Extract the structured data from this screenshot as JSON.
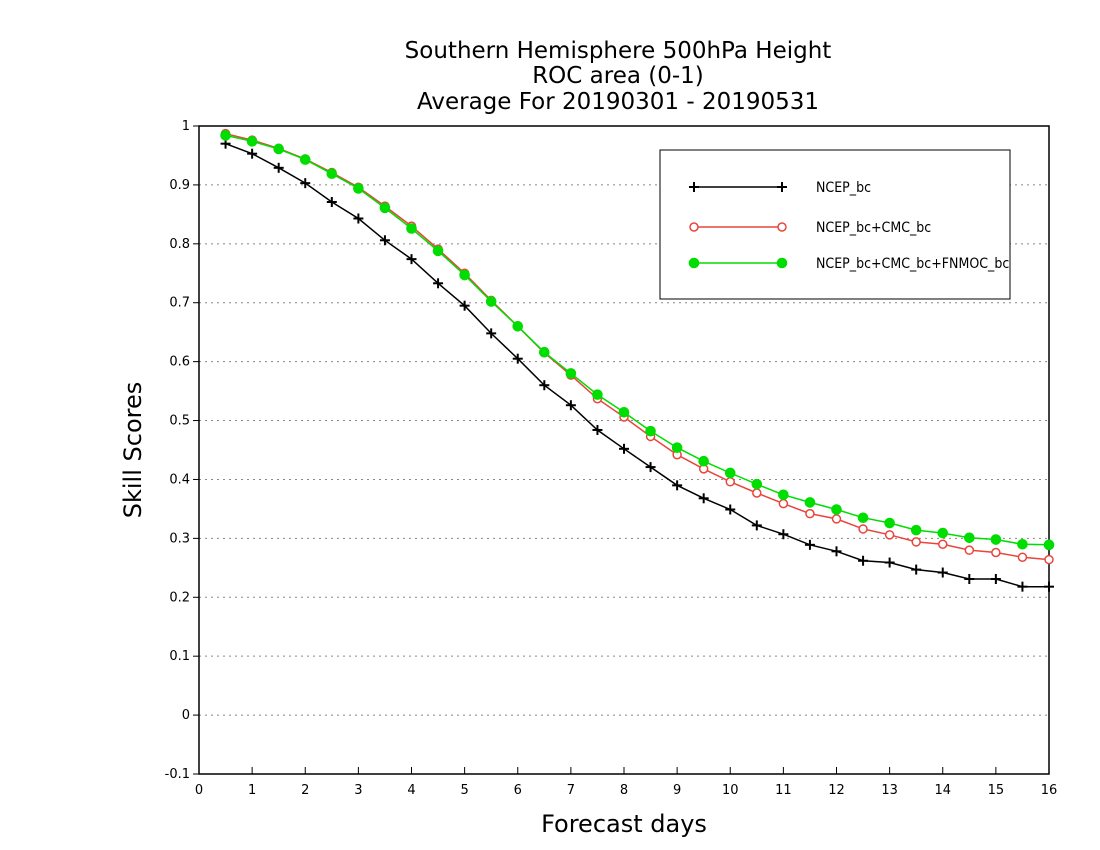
{
  "chart_data": {
    "type": "line",
    "title_lines": [
      "Southern Hemisphere 500hPa Height",
      "ROC area (0-1)",
      "Average For 20190301 - 20190531"
    ],
    "xlabel": "Forecast days",
    "ylabel": "Skill Scores",
    "xlim": [
      0,
      16
    ],
    "ylim": [
      -0.1,
      1
    ],
    "xticks": [
      0,
      1,
      2,
      3,
      4,
      5,
      6,
      7,
      8,
      9,
      10,
      11,
      12,
      13,
      14,
      15,
      16
    ],
    "yticks": [
      -0.1,
      0,
      0.1,
      0.2,
      0.3,
      0.4,
      0.5,
      0.6,
      0.7,
      0.8,
      0.9,
      1
    ],
    "ytick_labels": [
      "-0.1",
      "0",
      "0.1",
      "0.2",
      "0.3",
      "0.4",
      "0.5",
      "0.6",
      "0.7",
      "0.8",
      "0.9",
      "1"
    ],
    "grid": "horizontal dotted",
    "legend_position": "top-right",
    "x": [
      0.5,
      1,
      1.5,
      2,
      2.5,
      3,
      3.5,
      4,
      4.5,
      5,
      5.5,
      6,
      6.5,
      7,
      7.5,
      8,
      8.5,
      9,
      9.5,
      10,
      10.5,
      11,
      11.5,
      12,
      12.5,
      13,
      13.5,
      14,
      14.5,
      15,
      15.5,
      16
    ],
    "series": [
      {
        "name": "NCEP_bc",
        "color": "#000000",
        "marker": "plus",
        "values": [
          0.97,
          0.953,
          0.929,
          0.903,
          0.871,
          0.843,
          0.806,
          0.774,
          0.733,
          0.695,
          0.648,
          0.605,
          0.56,
          0.526,
          0.484,
          0.452,
          0.421,
          0.39,
          0.368,
          0.349,
          0.322,
          0.307,
          0.289,
          0.278,
          0.262,
          0.259,
          0.247,
          0.242,
          0.231,
          0.231,
          0.218,
          0.218
        ]
      },
      {
        "name": "NCEP_bc+CMC_bc",
        "color": "#e8463c",
        "marker": "open-circle",
        "values": [
          0.987,
          0.976,
          0.962,
          0.944,
          0.921,
          0.896,
          0.864,
          0.83,
          0.791,
          0.75,
          0.704,
          0.66,
          0.615,
          0.577,
          0.537,
          0.506,
          0.473,
          0.442,
          0.418,
          0.396,
          0.377,
          0.359,
          0.342,
          0.333,
          0.316,
          0.306,
          0.294,
          0.29,
          0.28,
          0.276,
          0.268,
          0.264
        ]
      },
      {
        "name": "NCEP_bc+CMC_bc+FNMOC_bc",
        "color": "#00dd00",
        "marker": "filled-circle",
        "values": [
          0.984,
          0.974,
          0.961,
          0.943,
          0.919,
          0.894,
          0.861,
          0.826,
          0.788,
          0.747,
          0.702,
          0.66,
          0.616,
          0.58,
          0.544,
          0.514,
          0.482,
          0.454,
          0.431,
          0.411,
          0.392,
          0.374,
          0.361,
          0.349,
          0.335,
          0.326,
          0.314,
          0.309,
          0.301,
          0.298,
          0.29,
          0.289
        ]
      }
    ]
  }
}
